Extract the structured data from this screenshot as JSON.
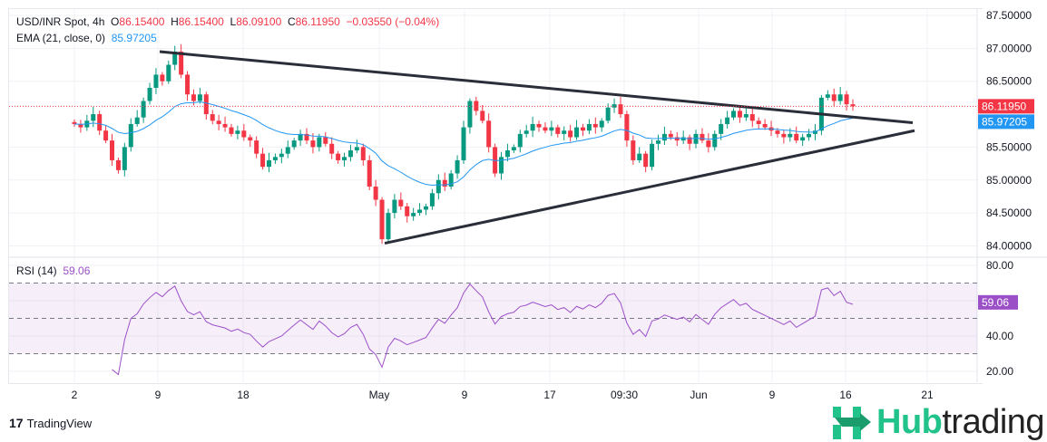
{
  "header": {
    "symbol": "USD/INR Spot, 4h",
    "o_label": "O",
    "open": "86.15400",
    "h_label": "H",
    "high": "86.15400",
    "l_label": "L",
    "low": "86.09100",
    "c_label": "C",
    "close": "86.11950",
    "change": "−0.03550 (−0.04%)",
    "ema_label": "EMA (21, close, 0)",
    "ema_value": "85.97205",
    "rsi_label": "RSI (14)",
    "rsi_value": "59.06"
  },
  "colors": {
    "up": "#089981",
    "down": "#f23645",
    "ema": "#2196f3",
    "rsi": "#9c50c8",
    "trend": "#2a2e39"
  },
  "branding": {
    "tradingview": "TradingView",
    "hub_green": "Hub",
    "hub_dark": "trading"
  },
  "chart_data": {
    "type": "candlestick",
    "title": "USD/INR Spot, 4h",
    "price_axis": [
      "87.50000",
      "87.00000",
      "86.50000",
      "85.50000",
      "85.00000",
      "84.50000",
      "84.00000"
    ],
    "price_ticks": [
      87.5,
      87.0,
      86.5,
      85.5,
      85.0,
      84.5,
      84.0
    ],
    "ylim": [
      83.93,
      87.6
    ],
    "last_price_label": "86.11950",
    "ema_label": "85.97205",
    "rsi_axis": [
      "80.00",
      "40.00",
      "20.00"
    ],
    "rsi_ticks": [
      80,
      40,
      20
    ],
    "rsi_bands": [
      70,
      50,
      30
    ],
    "rsi_last_label": "59.06",
    "x_labels": [
      "2",
      "9",
      "18",
      "May",
      "9",
      "17",
      "09:30",
      "Jun",
      "9",
      "16",
      "21"
    ],
    "close": [
      85.85,
      85.8,
      85.9,
      86.0,
      85.75,
      85.6,
      85.3,
      85.15,
      85.5,
      85.85,
      85.95,
      86.2,
      86.4,
      86.6,
      86.5,
      86.75,
      86.95,
      86.6,
      86.3,
      86.2,
      86.3,
      86.0,
      85.9,
      85.85,
      85.8,
      85.7,
      85.75,
      85.65,
      85.6,
      85.4,
      85.2,
      85.3,
      85.35,
      85.4,
      85.5,
      85.6,
      85.7,
      85.6,
      85.5,
      85.65,
      85.55,
      85.4,
      85.3,
      85.35,
      85.45,
      85.5,
      85.3,
      84.9,
      84.7,
      84.1,
      84.5,
      84.7,
      84.6,
      84.45,
      84.5,
      84.55,
      84.6,
      84.8,
      85.0,
      84.9,
      85.1,
      85.3,
      85.8,
      86.2,
      86.05,
      85.9,
      85.5,
      85.1,
      85.35,
      85.45,
      85.5,
      85.7,
      85.75,
      85.85,
      85.8,
      85.75,
      85.8,
      85.7,
      85.75,
      85.65,
      85.8,
      85.75,
      85.85,
      85.8,
      85.9,
      86.1,
      86.15,
      86.0,
      85.6,
      85.3,
      85.4,
      85.2,
      85.55,
      85.6,
      85.7,
      85.65,
      85.6,
      85.65,
      85.55,
      85.7,
      85.6,
      85.5,
      85.7,
      85.85,
      85.95,
      86.05,
      85.95,
      86.0,
      85.9,
      85.85,
      85.8,
      85.75,
      85.7,
      85.65,
      85.7,
      85.6,
      85.65,
      85.7,
      85.75,
      86.25,
      86.3,
      86.2,
      86.3,
      86.15,
      86.12
    ],
    "trendlines": [
      {
        "name": "upper",
        "from": 86.95,
        "to": 85.87
      },
      {
        "name": "lower",
        "from": 84.04,
        "to": 85.75
      }
    ]
  }
}
